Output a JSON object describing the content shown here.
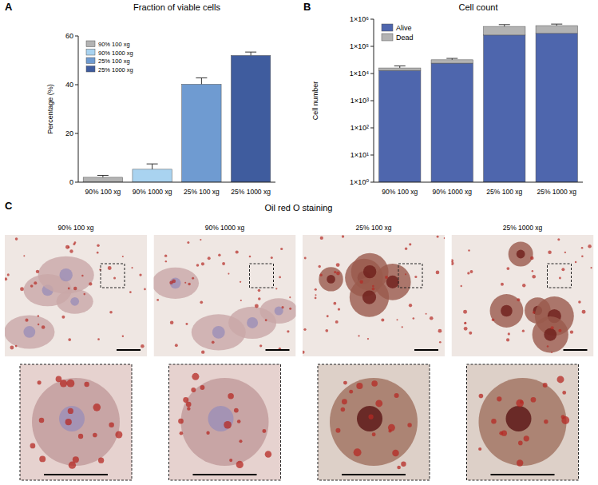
{
  "chart_data": [
    {
      "panel": "A",
      "type": "bar",
      "title": "Fraction of viable cells",
      "y_label": "Percentage (%)",
      "categories": [
        "90% 100 xg",
        "90% 1000 xg",
        "25% 100 xg",
        "25% 1000 xg"
      ],
      "values": [
        2.0,
        5.3,
        40.2,
        52.0
      ],
      "errors": [
        0.8,
        2.2,
        2.6,
        1.4
      ],
      "colors": [
        "#b3b3b3",
        "#a9d3f0",
        "#6f9bd1",
        "#3f5c9e"
      ],
      "ylim": [
        0,
        60
      ],
      "yticks": [
        0,
        20,
        40,
        60
      ],
      "grid": false,
      "legend": "upper left"
    },
    {
      "panel": "B",
      "type": "bar",
      "title": "Cell count",
      "y_label": "Cell number",
      "categories": [
        "90% 100 xg",
        "90% 1000 xg",
        "25% 100 xg",
        "25% 1000 xg"
      ],
      "series": [
        {
          "name": "Alive",
          "color": "#4e66ad",
          "values": [
            13000,
            24000,
            260000,
            300000
          ]
        },
        {
          "name": "Dead",
          "color": "#b3b3b3",
          "values": [
            3000,
            8000,
            280000,
            280000
          ],
          "errors": [
            3000,
            4000,
            90000,
            80000
          ]
        }
      ],
      "stacked": true,
      "log": "y",
      "ylim": [
        1,
        1000000
      ],
      "yticks": [
        {
          "value": 1,
          "label": "1×10⁰"
        },
        {
          "value": 10,
          "label": "1×10¹"
        },
        {
          "value": 100,
          "label": "1×10²"
        },
        {
          "value": 1000,
          "label": "1×10³"
        },
        {
          "value": 10000,
          "label": "1×10⁴"
        },
        {
          "value": 100000,
          "label": "1×10⁵"
        },
        {
          "value": 1000000,
          "label": "1×10⁶"
        }
      ],
      "grid": false,
      "legend": "upper left"
    }
  ],
  "images": {
    "panel": "C",
    "title": "Oil red O staining",
    "labels": [
      "90% 100 xg",
      "90% 1000 xg",
      "25% 100 xg",
      "25% 1000 xg"
    ]
  }
}
